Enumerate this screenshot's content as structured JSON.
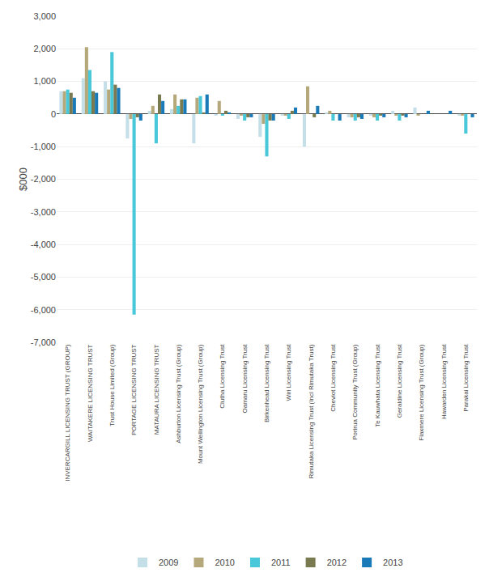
{
  "chart_data": {
    "type": "bar",
    "categories": [
      "INVERCARGILL LICENSING TRUST (GROUP)",
      "WAITAKERE LICENSING TRUST",
      "Trust House Limited (Group)",
      "PORTAGE LICENSING TRUST",
      "MATAURA LICENSING TRUST",
      "Ashburton Licensing Trust (Group)",
      "Mount Wellington Licensing Trust (Group)",
      "Clutha Licensing Trust",
      "Oamaru Licensing Trust",
      "Birkenhead Licensing Trust",
      "Wiri Licensing Trust",
      "Rimutaka Licensing Trust (Incl Rimutaka Trust)",
      "Cheviot Licensing Trust",
      "Porirua Community Trust (Group)",
      "Te Kauwhata Licensing Trust",
      "Geraldine Licensing Trust",
      "Flaxmere Licensing Trust (Group)",
      "Hawarden Licensing Trust",
      "Parakai Licensing Trust"
    ],
    "series": [
      {
        "name": "2009",
        "color": "#c5dfe8",
        "values": [
          700,
          1100,
          1000,
          -750,
          100,
          150,
          -900,
          -50,
          -150,
          -700,
          -50,
          -1000,
          50,
          -100,
          -50,
          100,
          200,
          0,
          -50
        ]
      },
      {
        "name": "2010",
        "color": "#b5a87a",
        "values": [
          700,
          2050,
          750,
          -150,
          250,
          600,
          500,
          400,
          -50,
          -300,
          -50,
          850,
          100,
          -100,
          -100,
          -50,
          -50,
          0,
          -50
        ]
      },
      {
        "name": "2011",
        "color": "#48c8d8",
        "values": [
          750,
          1350,
          1900,
          -6150,
          -900,
          250,
          550,
          -50,
          -200,
          -1300,
          -150,
          0,
          -200,
          -200,
          -200,
          -200,
          0,
          0,
          -600
        ]
      },
      {
        "name": "2012",
        "color": "#7a7a50",
        "values": [
          650,
          700,
          900,
          -100,
          600,
          450,
          50,
          100,
          -100,
          -200,
          100,
          -100,
          0,
          -100,
          -50,
          -50,
          0,
          0,
          0
        ]
      },
      {
        "name": "2013",
        "color": "#1a7ab8",
        "values": [
          500,
          650,
          800,
          -200,
          400,
          450,
          600,
          50,
          -100,
          -200,
          200,
          250,
          -200,
          -150,
          -100,
          -100,
          100,
          100,
          -100
        ]
      }
    ],
    "ylabel": "$000",
    "ylim": [
      -7000,
      3000
    ],
    "yticks": [
      {
        "value": -7000,
        "label": "-7,000"
      },
      {
        "value": -6000,
        "label": "-6,000"
      },
      {
        "value": -5000,
        "label": "-5,000"
      },
      {
        "value": -4000,
        "label": "-4,000"
      },
      {
        "value": -3000,
        "label": "-3,000"
      },
      {
        "value": -2000,
        "label": "-2,000"
      },
      {
        "value": -1000,
        "label": "-1,000"
      },
      0,
      {
        "value": 1000,
        "label": "1,000"
      },
      {
        "value": 2000,
        "label": "2,000"
      },
      {
        "value": 3000,
        "label": "3,000"
      }
    ],
    "grid": true,
    "legend": "bottom"
  }
}
